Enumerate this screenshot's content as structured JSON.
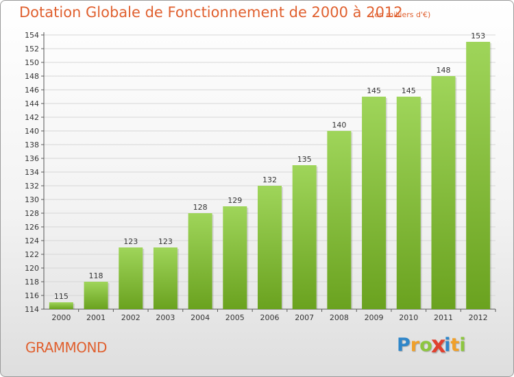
{
  "chart_data": {
    "type": "bar",
    "title": "Dotation Globale de Fonctionnement de 2000 à 2012",
    "subtitle": "(en milliers d'€)",
    "categories": [
      "2000",
      "2001",
      "2002",
      "2003",
      "2004",
      "2005",
      "2006",
      "2007",
      "2008",
      "2009",
      "2010",
      "2011",
      "2012"
    ],
    "values": [
      115,
      118,
      123,
      123,
      128,
      129,
      132,
      135,
      140,
      145,
      145,
      148,
      153
    ],
    "ylim": [
      114,
      154
    ],
    "yticks": [
      114,
      116,
      118,
      120,
      122,
      124,
      126,
      128,
      130,
      132,
      134,
      136,
      138,
      140,
      142,
      144,
      146,
      148,
      150,
      152,
      154
    ],
    "grid": true,
    "bar_color_top": "#9fd55a",
    "bar_color_bottom": "#6aa21f",
    "xlabel": "",
    "ylabel": ""
  },
  "footer": {
    "commune": "GRAMMOND"
  },
  "brand": {
    "letters": [
      {
        "char": "P",
        "color": "#2f86c9"
      },
      {
        "char": "r",
        "color": "#f0a02a"
      },
      {
        "char": "o",
        "color": "#8dc63f"
      },
      {
        "char": "x",
        "color": "#e0402f"
      },
      {
        "char": "i",
        "color": "#2f86c9"
      },
      {
        "char": "t",
        "color": "#f0a02a"
      },
      {
        "char": "i",
        "color": "#8dc63f"
      }
    ]
  },
  "colors": {
    "title": "#e0602f",
    "axis": "#555555",
    "grid": "#d6d6d6"
  }
}
